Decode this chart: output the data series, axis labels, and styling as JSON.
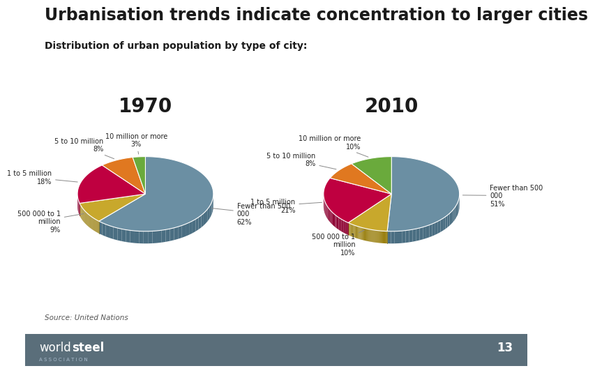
{
  "title": "Urbanisation trends indicate concentration to larger cities",
  "subtitle": "Distribution of urban population by type of city:",
  "source": "Source: United Nations",
  "year1": "1970",
  "year2": "2010",
  "categories": [
    "Fewer than 500\n000",
    "500 000 to 1\nmillion",
    "1 to 5 million",
    "5 to 10 million",
    "10 million or more"
  ],
  "values_1970": [
    62,
    9,
    18,
    8,
    3
  ],
  "values_2010": [
    51,
    10,
    21,
    8,
    10
  ],
  "colors": [
    "#6b8fa3",
    "#c8a82c",
    "#bf0040",
    "#e07820",
    "#6aaa3c"
  ],
  "shadow_colors": [
    "#4a6e82",
    "#9a8010",
    "#8c0030",
    "#b05a10",
    "#4a8a20"
  ],
  "bg_color": "#ffffff",
  "title_fontsize": 17,
  "subtitle_fontsize": 10,
  "label_fontsize": 7,
  "footer_bg": "#5a6e7a",
  "footer_text_color": "#ffffff",
  "page_number": "13"
}
